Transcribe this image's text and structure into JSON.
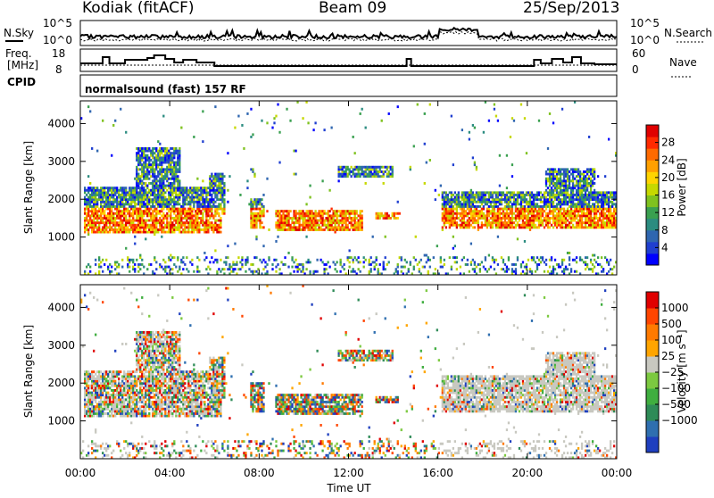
{
  "header": {
    "radar": "Kodiak (fitACF)",
    "beam": "Beam 09",
    "date": "25/Sep/2013",
    "program": "normalsound (fast) 157 RF"
  },
  "left_labels": {
    "nsky": "N.Sky",
    "freq_line1": "Freq.",
    "freq_line2": "[MHz]",
    "cpid": "CPID"
  },
  "right_labels": {
    "nsearch": "N.Search",
    "nave": "Nave"
  },
  "noise_axis": {
    "left_top": "10^5",
    "left_bottom": "10^0",
    "right_top": "10^5",
    "right_bottom": "10^0"
  },
  "freq_axis": {
    "left_top": "18",
    "left_bottom": "8",
    "right_top": "60",
    "right_bottom": "0"
  },
  "chart_data": [
    {
      "type": "heatmap",
      "name": "power",
      "ylabel": "Slant Range [km]",
      "xlabel": "Time UT",
      "yticks": [
        "1000",
        "2000",
        "3000",
        "4000"
      ],
      "xticks": [
        "00:00",
        "04:00",
        "08:00",
        "12:00",
        "16:00",
        "20:00",
        "00:00"
      ],
      "ylim": [
        0,
        4600
      ],
      "colorbar": {
        "label": "Power [dB]",
        "ticks": [
          "4",
          "8",
          "12",
          "16",
          "20",
          "24",
          "28"
        ],
        "colors": [
          "#0000ff",
          "#1f3fd0",
          "#2f66b0",
          "#2b8c80",
          "#3aa050",
          "#7fc21f",
          "#c6d800",
          "#ffd400",
          "#ffa000",
          "#ff6a00",
          "#ff2a00",
          "#e00000"
        ]
      }
    },
    {
      "type": "heatmap",
      "name": "velocity",
      "ylabel": "Slant Range [km]",
      "xlabel": "Time UT",
      "yticks": [
        "1000",
        "2000",
        "3000",
        "4000"
      ],
      "xticks": [
        "00:00",
        "04:00",
        "08:00",
        "12:00",
        "16:00",
        "20:00",
        "00:00"
      ],
      "ylim": [
        0,
        4600
      ],
      "colorbar": {
        "label": "Velocity [m s⁻¹]",
        "ticks": [
          "1000",
          "500",
          "100",
          "25",
          "−25",
          "−100",
          "−500",
          "−1000"
        ],
        "colors": [
          "#1f3fbf",
          "#2f6fb0",
          "#2e8b57",
          "#3fae3f",
          "#7cc940",
          "#c8c8c0",
          "#ffa500",
          "#ff7a00",
          "#ff4500",
          "#e00000"
        ]
      }
    }
  ],
  "xlabel": "Time UT"
}
